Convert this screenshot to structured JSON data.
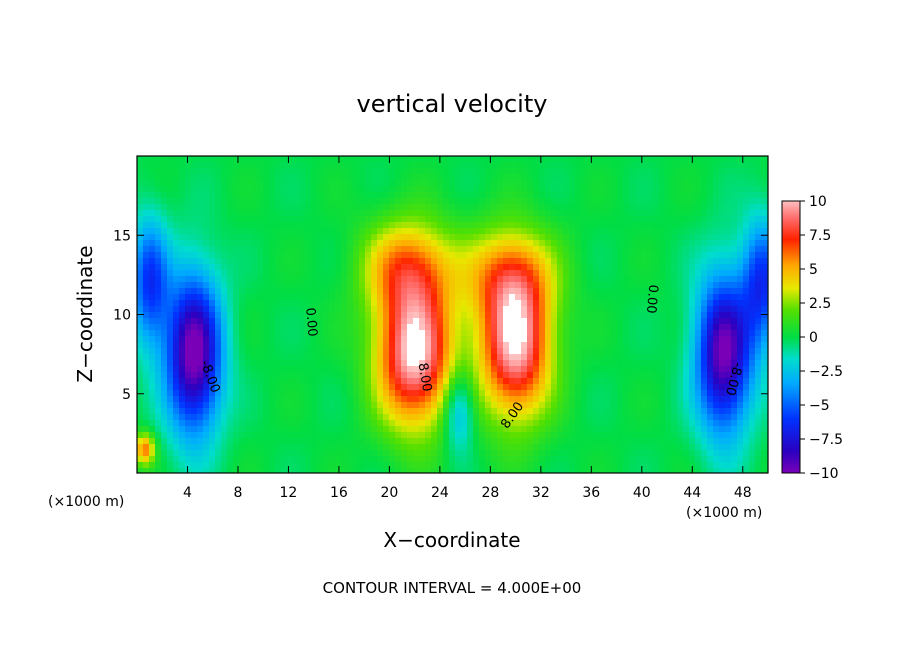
{
  "chart_data": {
    "type": "heatmap",
    "title": "vertical velocity",
    "xlabel": "X−coordinate",
    "ylabel": "Z−coordinate",
    "x_unit": "(×1000 m)",
    "footer": "CONTOUR INTERVAL = 4.000E+00",
    "xlim": [
      0,
      50
    ],
    "ylim": [
      0,
      20
    ],
    "x_ticks": [
      4,
      8,
      12,
      16,
      20,
      24,
      28,
      32,
      36,
      40,
      44,
      48
    ],
    "x_tick_labels": [
      "4",
      "8",
      "12",
      "16",
      "20",
      "24",
      "28",
      "32",
      "36",
      "40",
      "44",
      "48"
    ],
    "y_ticks": [
      5,
      10,
      15
    ],
    "y_tick_labels": [
      "5",
      "10",
      "15"
    ],
    "colorbar": {
      "min": -10,
      "max": 10,
      "ticks": [
        10,
        7.5,
        5,
        2.5,
        0,
        -2.5,
        -5,
        -7.5,
        -10
      ],
      "tick_labels": [
        "10",
        "7.5",
        "5",
        "2.5",
        "0",
        "−2.5",
        "−5",
        "−7.5",
        "−10"
      ]
    },
    "contour_interval": 4.0,
    "contour_labels": [
      {
        "text": "0.00",
        "x": 13.5,
        "z": 9.5,
        "angle": 85
      },
      {
        "text": "0.00",
        "x": 40.5,
        "z": 11.0,
        "angle": 95
      },
      {
        "text": "8.00",
        "x": 22.5,
        "z": 6.0,
        "angle": 80
      },
      {
        "text": "8.00",
        "x": 30.0,
        "z": 3.5,
        "angle": -55
      },
      {
        "text": "-8.00",
        "x": 5.5,
        "z": 6.0,
        "angle": 70
      },
      {
        "text": "-8.00",
        "x": 47.0,
        "z": 6.0,
        "angle": 105
      }
    ],
    "features": [
      {
        "name": "updraft-left",
        "x": 22.0,
        "z": 7.5,
        "sx": 3.0,
        "sz": 4.5,
        "peak": 10.5
      },
      {
        "name": "updraft-right",
        "x": 30.0,
        "z": 8.0,
        "sx": 2.8,
        "sz": 4.5,
        "peak": 10.0
      },
      {
        "name": "anvil-left",
        "x": 21.5,
        "z": 13.0,
        "sx": 3.5,
        "sz": 3.0,
        "peak": 5.5
      },
      {
        "name": "anvil-right",
        "x": 29.5,
        "z": 12.5,
        "sx": 3.5,
        "sz": 3.0,
        "peak": 5.0
      },
      {
        "name": "downdraft-left",
        "x": 4.5,
        "z": 7.5,
        "sx": 2.2,
        "sz": 5.0,
        "peak": -10.5
      },
      {
        "name": "downdraft-right",
        "x": 46.5,
        "z": 7.5,
        "sx": 2.2,
        "sz": 5.0,
        "peak": -10.0
      },
      {
        "name": "edge-left",
        "x": 1.0,
        "z": 12.0,
        "sx": 1.5,
        "sz": 4.0,
        "peak": -6.0
      },
      {
        "name": "edge-right",
        "x": 49.5,
        "z": 12.0,
        "sx": 1.5,
        "sz": 4.0,
        "peak": -6.0
      },
      {
        "name": "corner-warm",
        "x": 0.6,
        "z": 1.5,
        "sx": 0.8,
        "sz": 1.0,
        "peak": 6.0
      },
      {
        "name": "gap-cold",
        "x": 25.5,
        "z": 4.0,
        "sx": 1.2,
        "sz": 2.5,
        "peak": -4.0
      }
    ]
  }
}
